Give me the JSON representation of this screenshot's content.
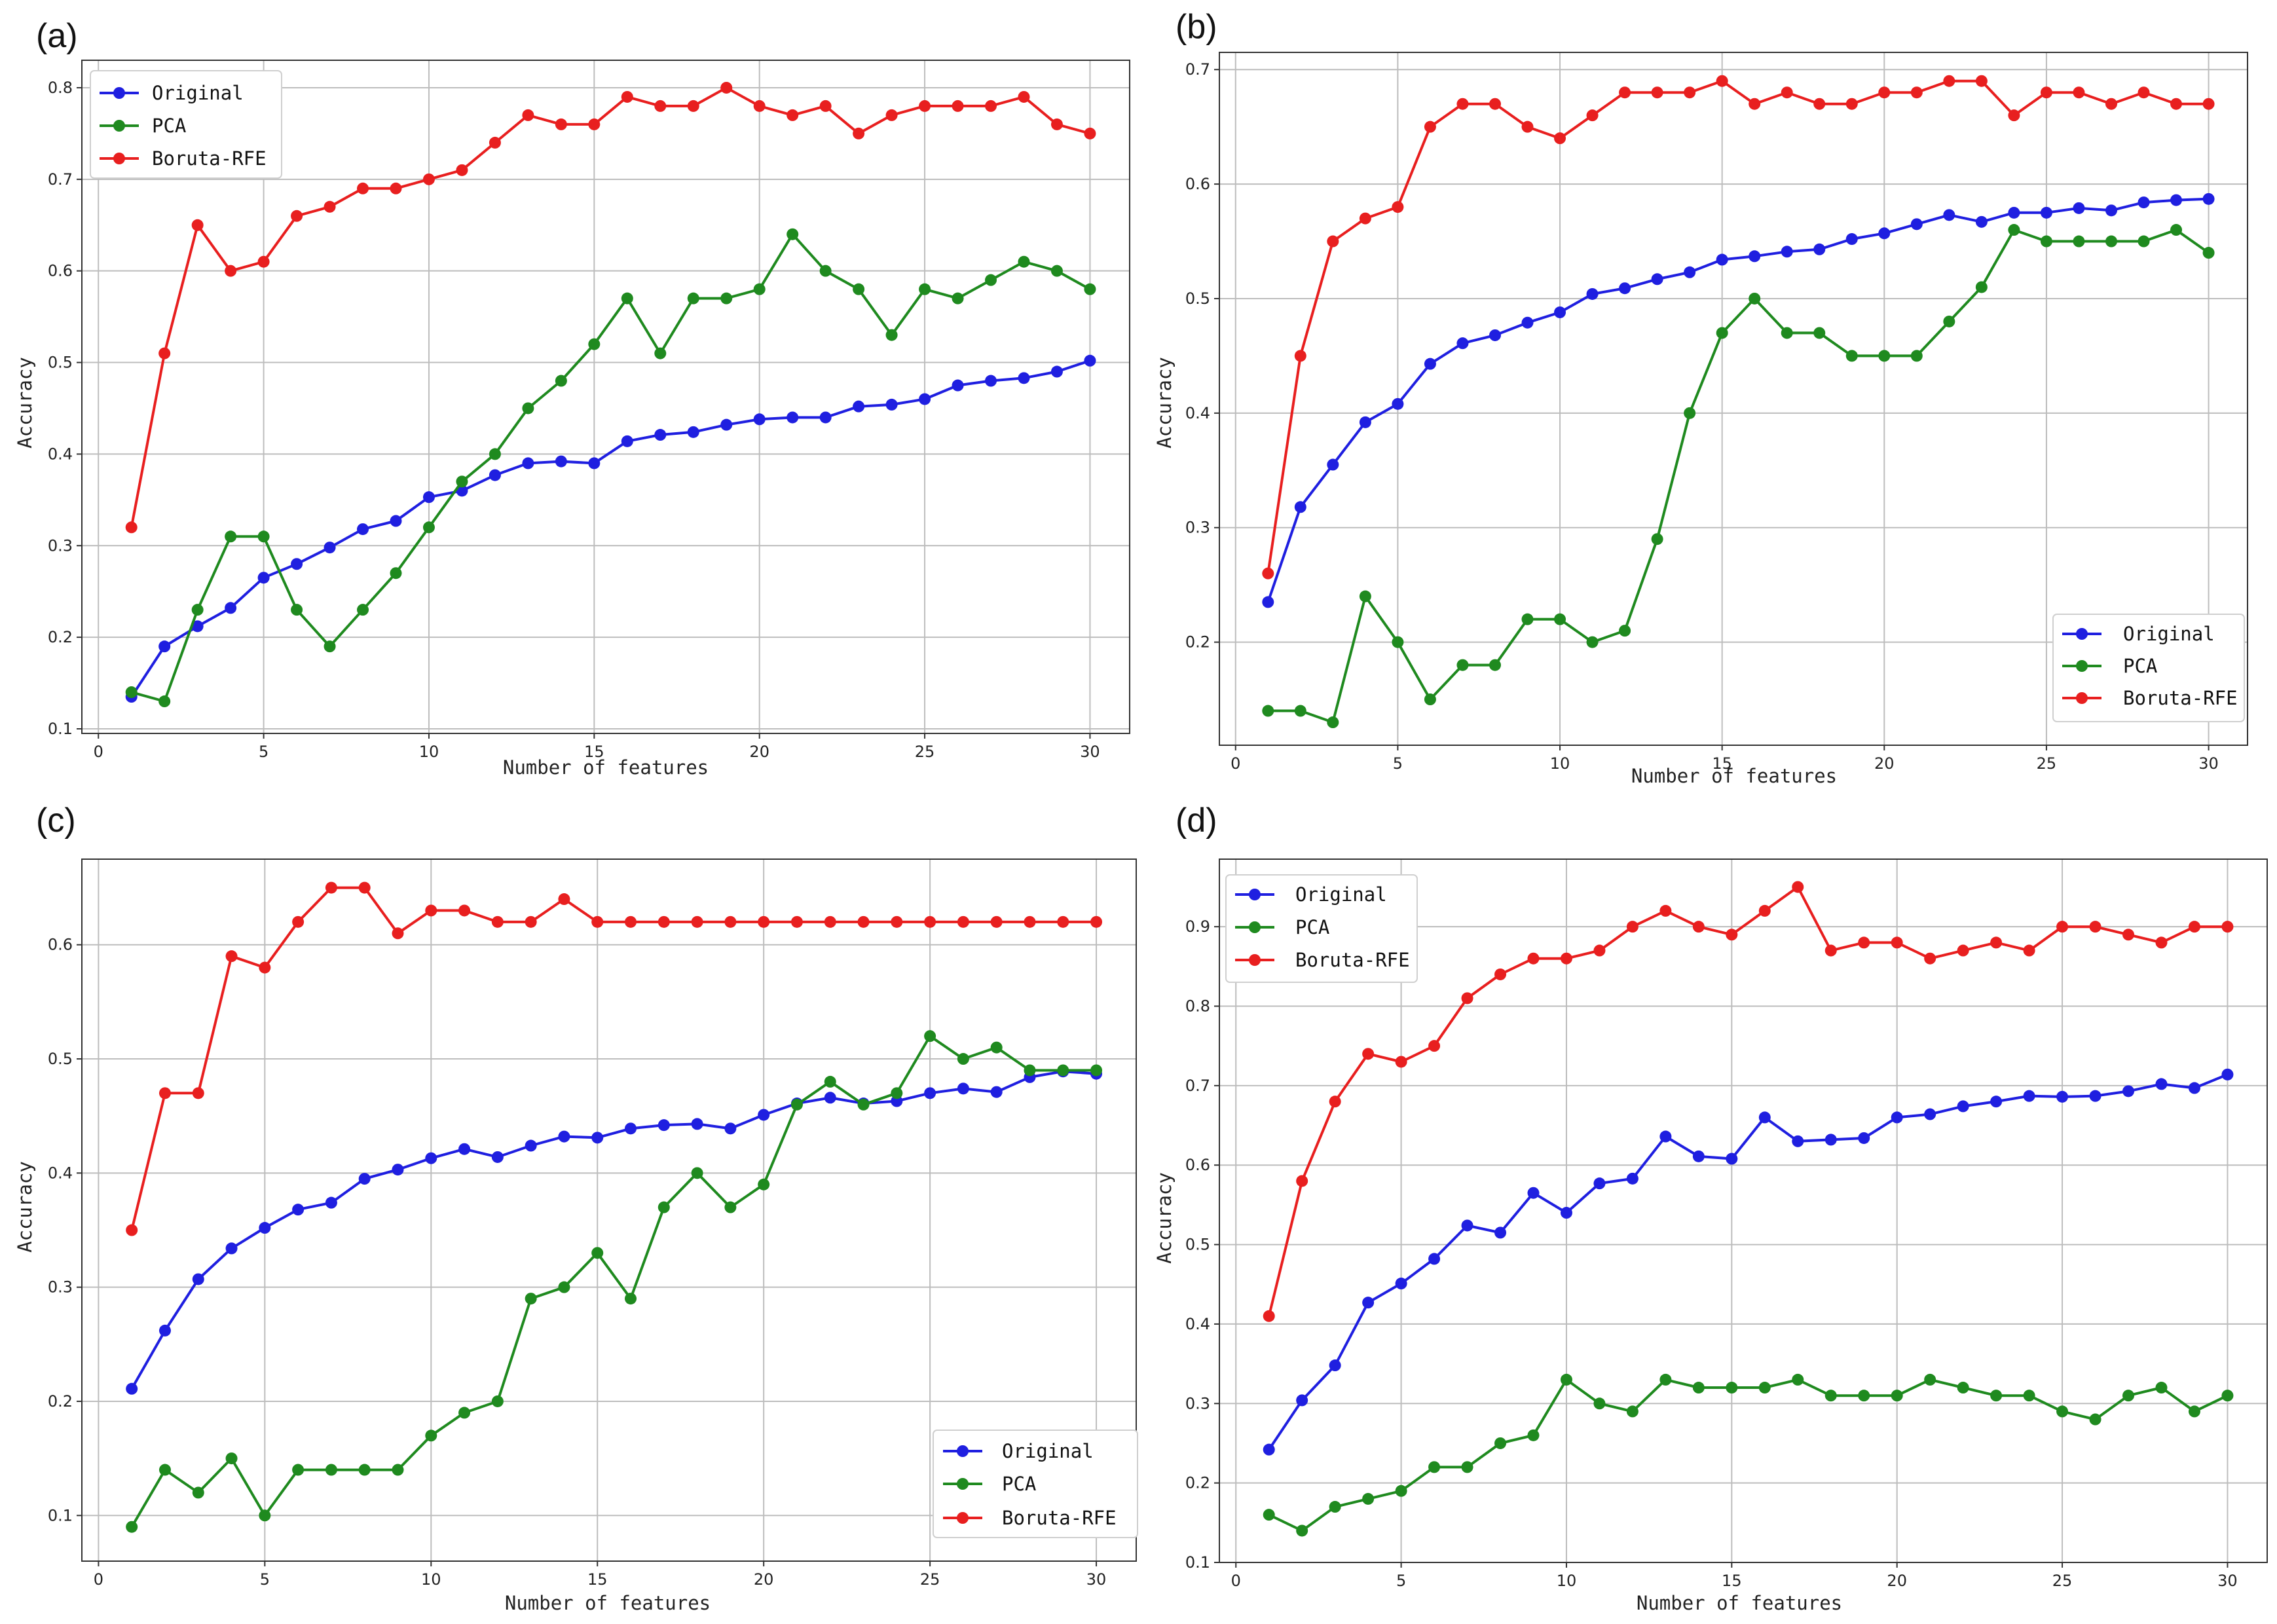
{
  "colors": {
    "Original": "#1f1fe0",
    "PCA": "#1f8a1f",
    "Boruta-RFE": "#e81f1f"
  },
  "chart_data": [
    {
      "panel": "(a)",
      "type": "line",
      "xlabel": "Number of features",
      "ylabel": "Accuracy",
      "xlim": [
        -0.5,
        31.2
      ],
      "ylim": [
        0.095,
        0.83
      ],
      "xticks": [
        0,
        5,
        10,
        15,
        20,
        25,
        30
      ],
      "yticks": [
        0.1,
        0.2,
        0.3,
        0.4,
        0.5,
        0.6,
        0.7,
        0.8
      ],
      "ytick_labels": [
        "0.1",
        "0.2",
        "0.3",
        "0.4",
        "0.5",
        "0.6",
        "0.7",
        "0.8"
      ],
      "legend_position": "top-left",
      "x": [
        1,
        2,
        3,
        4,
        5,
        6,
        7,
        8,
        9,
        10,
        11,
        12,
        13,
        14,
        15,
        16,
        17,
        18,
        19,
        20,
        21,
        22,
        23,
        24,
        25,
        26,
        27,
        28,
        29,
        30
      ],
      "series": [
        {
          "name": "Original",
          "values": [
            0.135,
            0.19,
            0.212,
            0.232,
            0.265,
            0.28,
            0.298,
            0.318,
            0.327,
            0.353,
            0.36,
            0.377,
            0.39,
            0.392,
            0.39,
            0.414,
            0.421,
            0.424,
            0.432,
            0.438,
            0.44,
            0.44,
            0.452,
            0.454,
            0.46,
            0.475,
            0.48,
            0.483,
            0.49,
            0.502
          ]
        },
        {
          "name": "PCA",
          "values": [
            0.14,
            0.13,
            0.23,
            0.31,
            0.31,
            0.23,
            0.19,
            0.23,
            0.27,
            0.32,
            0.37,
            0.4,
            0.45,
            0.48,
            0.52,
            0.57,
            0.51,
            0.57,
            0.57,
            0.58,
            0.64,
            0.6,
            0.58,
            0.53,
            0.58,
            0.57,
            0.59,
            0.61,
            0.6,
            0.58
          ]
        },
        {
          "name": "Boruta-RFE",
          "values": [
            0.32,
            0.51,
            0.65,
            0.6,
            0.61,
            0.66,
            0.67,
            0.69,
            0.69,
            0.7,
            0.71,
            0.74,
            0.77,
            0.76,
            0.76,
            0.79,
            0.78,
            0.78,
            0.8,
            0.78,
            0.77,
            0.78,
            0.75,
            0.77,
            0.78,
            0.78,
            0.78,
            0.79,
            0.76,
            0.75
          ]
        }
      ]
    },
    {
      "panel": "(b)",
      "type": "line",
      "xlabel": "Number of features",
      "ylabel": "Accuracy",
      "xlim": [
        -0.5,
        31.2
      ],
      "ylim": [
        0.11,
        0.715
      ],
      "xticks": [
        0,
        5,
        10,
        15,
        20,
        25,
        30
      ],
      "yticks": [
        0.2,
        0.3,
        0.4,
        0.5,
        0.6,
        0.7
      ],
      "ytick_labels": [
        "0.2",
        "0.3",
        "0.4",
        "0.5",
        "0.6",
        "0.7"
      ],
      "legend_position": "bottom-right",
      "x": [
        1,
        2,
        3,
        4,
        5,
        6,
        7,
        8,
        9,
        10,
        11,
        12,
        13,
        14,
        15,
        16,
        17,
        18,
        19,
        20,
        21,
        22,
        23,
        24,
        25,
        26,
        27,
        28,
        29,
        30
      ],
      "series": [
        {
          "name": "Original",
          "values": [
            0.235,
            0.318,
            0.355,
            0.392,
            0.408,
            0.443,
            0.461,
            0.468,
            0.479,
            0.488,
            0.504,
            0.509,
            0.517,
            0.523,
            0.534,
            0.537,
            0.541,
            0.543,
            0.552,
            0.557,
            0.565,
            0.573,
            0.567,
            0.575,
            0.575,
            0.579,
            0.577,
            0.584,
            0.586,
            0.587
          ]
        },
        {
          "name": "PCA",
          "values": [
            0.14,
            0.14,
            0.13,
            0.24,
            0.2,
            0.15,
            0.18,
            0.18,
            0.22,
            0.22,
            0.2,
            0.21,
            0.29,
            0.4,
            0.47,
            0.5,
            0.47,
            0.47,
            0.45,
            0.45,
            0.45,
            0.48,
            0.51,
            0.56,
            0.55,
            0.55,
            0.55,
            0.55,
            0.56,
            0.54
          ]
        },
        {
          "name": "Boruta-RFE",
          "values": [
            0.26,
            0.45,
            0.55,
            0.57,
            0.58,
            0.65,
            0.67,
            0.67,
            0.65,
            0.64,
            0.66,
            0.68,
            0.68,
            0.68,
            0.69,
            0.67,
            0.68,
            0.67,
            0.67,
            0.68,
            0.68,
            0.69,
            0.69,
            0.66,
            0.68,
            0.68,
            0.67,
            0.68,
            0.67,
            0.67
          ]
        }
      ]
    },
    {
      "panel": "(c)",
      "type": "line",
      "xlabel": "Number of features",
      "ylabel": "Accuracy",
      "xlim": [
        -0.5,
        31.2
      ],
      "ylim": [
        0.06,
        0.675
      ],
      "xticks": [
        0,
        5,
        10,
        15,
        20,
        25,
        30
      ],
      "yticks": [
        0.1,
        0.2,
        0.3,
        0.4,
        0.5,
        0.6
      ],
      "ytick_labels": [
        "0.1",
        "0.2",
        "0.3",
        "0.4",
        "0.5",
        "0.6"
      ],
      "legend_position": "bottom-right",
      "x": [
        1,
        2,
        3,
        4,
        5,
        6,
        7,
        8,
        9,
        10,
        11,
        12,
        13,
        14,
        15,
        16,
        17,
        18,
        19,
        20,
        21,
        22,
        23,
        24,
        25,
        26,
        27,
        28,
        29,
        30
      ],
      "series": [
        {
          "name": "Original",
          "values": [
            0.211,
            0.262,
            0.307,
            0.334,
            0.352,
            0.368,
            0.374,
            0.395,
            0.403,
            0.413,
            0.421,
            0.414,
            0.424,
            0.432,
            0.431,
            0.439,
            0.442,
            0.443,
            0.439,
            0.451,
            0.461,
            0.466,
            0.461,
            0.463,
            0.47,
            0.474,
            0.471,
            0.484,
            0.489,
            0.487
          ]
        },
        {
          "name": "PCA",
          "values": [
            0.09,
            0.14,
            0.12,
            0.15,
            0.1,
            0.14,
            0.14,
            0.14,
            0.14,
            0.17,
            0.19,
            0.2,
            0.29,
            0.3,
            0.33,
            0.29,
            0.37,
            0.4,
            0.37,
            0.39,
            0.46,
            0.48,
            0.46,
            0.47,
            0.52,
            0.5,
            0.51,
            0.49,
            0.49,
            0.49
          ]
        },
        {
          "name": "Boruta-RFE",
          "values": [
            0.35,
            0.47,
            0.47,
            0.59,
            0.58,
            0.62,
            0.65,
            0.65,
            0.61,
            0.63,
            0.63,
            0.62,
            0.62,
            0.64,
            0.62,
            0.62,
            0.62,
            0.62,
            0.62,
            0.62,
            0.62,
            0.62,
            0.62,
            0.62,
            0.62,
            0.62,
            0.62,
            0.62,
            0.62,
            0.62
          ]
        }
      ]
    },
    {
      "panel": "(d)",
      "type": "line",
      "xlabel": "Number of features",
      "ylabel": "Accuracy",
      "xlim": [
        -0.5,
        31.2
      ],
      "ylim": [
        0.1,
        0.985
      ],
      "xticks": [
        0,
        5,
        10,
        15,
        20,
        25,
        30
      ],
      "yticks": [
        0.1,
        0.2,
        0.3,
        0.4,
        0.5,
        0.6,
        0.7,
        0.8,
        0.9
      ],
      "ytick_labels": [
        "0.1",
        "0.2",
        "0.3",
        "0.4",
        "0.5",
        "0.6",
        "0.7",
        "0.8",
        "0.9"
      ],
      "legend_position": "top-left",
      "x": [
        1,
        2,
        3,
        4,
        5,
        6,
        7,
        8,
        9,
        10,
        11,
        12,
        13,
        14,
        15,
        16,
        17,
        18,
        19,
        20,
        21,
        22,
        23,
        24,
        25,
        26,
        27,
        28,
        29,
        30
      ],
      "series": [
        {
          "name": "Original",
          "values": [
            0.242,
            0.304,
            0.348,
            0.427,
            0.451,
            0.482,
            0.524,
            0.515,
            0.565,
            0.54,
            0.577,
            0.583,
            0.636,
            0.611,
            0.608,
            0.66,
            0.63,
            0.632,
            0.634,
            0.66,
            0.664,
            0.674,
            0.68,
            0.687,
            0.686,
            0.687,
            0.693,
            0.702,
            0.697,
            0.714
          ]
        },
        {
          "name": "PCA",
          "values": [
            0.16,
            0.14,
            0.17,
            0.18,
            0.19,
            0.22,
            0.22,
            0.25,
            0.26,
            0.33,
            0.3,
            0.29,
            0.33,
            0.32,
            0.32,
            0.32,
            0.33,
            0.31,
            0.31,
            0.31,
            0.33,
            0.32,
            0.31,
            0.31,
            0.29,
            0.28,
            0.31,
            0.32,
            0.29,
            0.31
          ]
        },
        {
          "name": "Boruta-RFE",
          "values": [
            0.41,
            0.58,
            0.68,
            0.74,
            0.73,
            0.75,
            0.81,
            0.84,
            0.86,
            0.86,
            0.87,
            0.9,
            0.92,
            0.9,
            0.89,
            0.92,
            0.95,
            0.87,
            0.88,
            0.88,
            0.86,
            0.87,
            0.88,
            0.87,
            0.9,
            0.9,
            0.89,
            0.88,
            0.9,
            0.9
          ]
        }
      ]
    }
  ]
}
